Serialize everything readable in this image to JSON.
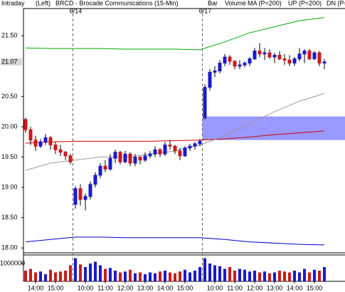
{
  "chart_data": {
    "type": "candlestick",
    "header": [
      "Intraday",
      "(Left)"
    ],
    "title": "BRCD - Brocade Communications (15-Min)",
    "bar_label": "Bar",
    "categories": [
      null,
      null,
      "14:00",
      null,
      null,
      null,
      "15:00",
      null,
      null,
      null,
      null,
      null,
      "10:00",
      null,
      null,
      null,
      "11:00",
      null,
      null,
      null,
      "12:00",
      null,
      null,
      null,
      "13:00",
      null,
      null,
      null,
      "14:00",
      null,
      null,
      null,
      "15:00",
      null,
      null,
      null,
      null,
      null,
      "10:00",
      null,
      null,
      null,
      "11:00",
      null,
      null,
      null,
      "12:00",
      null,
      null,
      null,
      "13:00",
      null,
      null,
      null,
      "14:00",
      null,
      null,
      null,
      "15:00",
      null,
      null
    ],
    "day_breaks": [
      {
        "index": 10,
        "label": "6/14"
      },
      {
        "index": 36,
        "label": "6/17"
      }
    ],
    "open": [
      20.12,
      19.95,
      19.78,
      19.68,
      19.75,
      19.82,
      19.7,
      19.62,
      19.58,
      19.52,
      18.72,
      18.98,
      18.8,
      18.85,
      19.05,
      19.2,
      19.35,
      19.3,
      19.48,
      19.58,
      19.42,
      19.55,
      19.4,
      19.5,
      19.45,
      19.52,
      19.55,
      19.62,
      19.55,
      19.7,
      19.68,
      19.6,
      19.52,
      19.65,
      19.68,
      19.72,
      20.15,
      20.65,
      20.9,
      20.92,
      21.05,
      21.15,
      21.08,
      21.0,
      21.02,
      21.05,
      21.12,
      21.25,
      21.2,
      21.22,
      21.15,
      21.18,
      21.12,
      21.1,
      21.05,
      21.12,
      21.2,
      21.25,
      21.12,
      21.22,
      21.05
    ],
    "high": [
      20.15,
      20.0,
      19.85,
      19.8,
      19.88,
      19.85,
      19.75,
      19.7,
      19.6,
      19.55,
      19.02,
      19.05,
      18.9,
      19.1,
      19.25,
      19.4,
      19.45,
      19.55,
      19.62,
      19.6,
      19.6,
      19.58,
      19.55,
      19.52,
      19.58,
      19.6,
      19.68,
      19.65,
      19.75,
      19.78,
      19.7,
      19.65,
      19.68,
      19.72,
      19.75,
      19.8,
      20.7,
      20.95,
      21.0,
      21.1,
      21.2,
      21.18,
      21.1,
      21.1,
      21.08,
      21.15,
      21.3,
      21.38,
      21.3,
      21.28,
      21.22,
      21.25,
      21.2,
      21.18,
      21.15,
      21.3,
      21.28,
      21.28,
      21.25,
      21.25,
      21.12
    ],
    "low": [
      19.9,
      19.7,
      19.6,
      19.65,
      19.7,
      19.62,
      19.55,
      19.52,
      19.45,
      19.38,
      18.65,
      18.7,
      18.62,
      18.8,
      19.0,
      19.15,
      19.25,
      19.28,
      19.4,
      19.38,
      19.4,
      19.35,
      19.35,
      19.38,
      19.42,
      19.48,
      19.5,
      19.5,
      19.52,
      19.62,
      19.55,
      19.45,
      19.5,
      19.6,
      19.62,
      19.68,
      20.12,
      20.6,
      20.82,
      20.88,
      21.0,
      21.02,
      20.95,
      20.95,
      20.98,
      21.0,
      21.1,
      21.15,
      21.1,
      21.12,
      21.05,
      21.1,
      21.02,
      21.0,
      21.0,
      21.08,
      21.05,
      21.1,
      21.1,
      21.0,
      20.95
    ],
    "close": [
      19.95,
      19.78,
      19.68,
      19.75,
      19.82,
      19.7,
      19.62,
      19.58,
      19.52,
      19.42,
      18.98,
      18.8,
      18.85,
      19.05,
      19.2,
      19.35,
      19.3,
      19.48,
      19.58,
      19.42,
      19.55,
      19.4,
      19.5,
      19.45,
      19.52,
      19.55,
      19.62,
      19.55,
      19.7,
      19.68,
      19.6,
      19.52,
      19.65,
      19.68,
      19.72,
      19.76,
      20.65,
      20.9,
      20.92,
      21.05,
      21.15,
      21.08,
      21.0,
      21.02,
      21.05,
      21.12,
      21.25,
      21.2,
      21.22,
      21.15,
      21.18,
      21.12,
      21.1,
      21.05,
      21.12,
      21.2,
      21.25,
      21.12,
      21.22,
      21.05,
      21.07
    ],
    "up_color": "#1a1acc",
    "down_color": "#cc1a1a",
    "ylim": [
      17.92,
      21.95
    ],
    "yticks": [
      {
        "value": 18,
        "label": "18.00"
      },
      {
        "value": 18.5,
        "label": "18.50"
      },
      {
        "value": 19,
        "label": "19.00"
      },
      {
        "value": 19.5,
        "label": "19.50"
      },
      {
        "value": 20,
        "label": "20.00"
      },
      {
        "value": 20.5,
        "label": "20.50"
      },
      {
        "value": 21.5,
        "label": "21.50"
      }
    ],
    "last_price": 21.07,
    "zone": {
      "from": 36,
      "low": 19.78,
      "high": 20.17,
      "color": "#8080ff"
    },
    "series": [
      {
        "name": "MA (P=200)",
        "color": "#cc0000",
        "x": [
          0,
          5,
          10,
          15,
          20,
          25,
          30,
          35,
          40,
          45,
          50,
          55,
          60
        ],
        "values": [
          19.73,
          19.75,
          19.76,
          19.76,
          19.76,
          19.76,
          19.77,
          19.78,
          19.8,
          19.83,
          19.87,
          19.9,
          19.93
        ]
      },
      {
        "name": "UP (P=200)",
        "color": "#00aa00",
        "x": [
          0,
          5,
          10,
          15,
          20,
          25,
          30,
          35,
          40,
          45,
          50,
          55,
          60
        ],
        "values": [
          21.3,
          21.29,
          21.29,
          21.29,
          21.28,
          21.28,
          21.28,
          21.27,
          21.4,
          21.55,
          21.65,
          21.75,
          21.8
        ]
      },
      {
        "name": "DN (P=200)",
        "color": "#0000cc",
        "x": [
          0,
          5,
          10,
          15,
          20,
          25,
          30,
          35,
          40,
          45,
          50,
          55,
          60
        ],
        "values": [
          18.1,
          18.14,
          18.18,
          18.18,
          18.17,
          18.17,
          18.17,
          18.17,
          18.14,
          18.1,
          18.08,
          18.06,
          18.05
        ]
      },
      {
        "color": "#999999",
        "x": [
          0,
          5,
          10,
          15,
          20,
          25,
          30,
          35,
          40,
          45,
          50,
          55,
          60
        ],
        "values": [
          19.28,
          19.4,
          19.45,
          19.5,
          19.5,
          19.55,
          19.6,
          19.7,
          19.85,
          20.05,
          20.25,
          20.42,
          20.55
        ]
      }
    ],
    "volume": {
      "name": "Volume",
      "color": "#008800",
      "values": [
        600000,
        700000,
        500000,
        550000,
        400000,
        650000,
        500000,
        550000,
        600000,
        900000,
        1300000,
        950000,
        800000,
        1000000,
        1100000,
        900000,
        700000,
        750000,
        600000,
        500000,
        550000,
        650000,
        450000,
        500000,
        400000,
        500000,
        450000,
        550000,
        600000,
        500000,
        450000,
        550000,
        650000,
        500000,
        600000,
        800000,
        1300000,
        1000000,
        900000,
        850000,
        700000,
        800000,
        600000,
        700000,
        650000,
        550000,
        600000,
        500000,
        550000,
        450000,
        500000,
        600000,
        550000,
        500000,
        600000,
        500000,
        700000,
        500000,
        650000,
        600000,
        800000
      ],
      "ylim": [
        0,
        1480000
      ],
      "yticks": [
        1000000
      ]
    }
  }
}
